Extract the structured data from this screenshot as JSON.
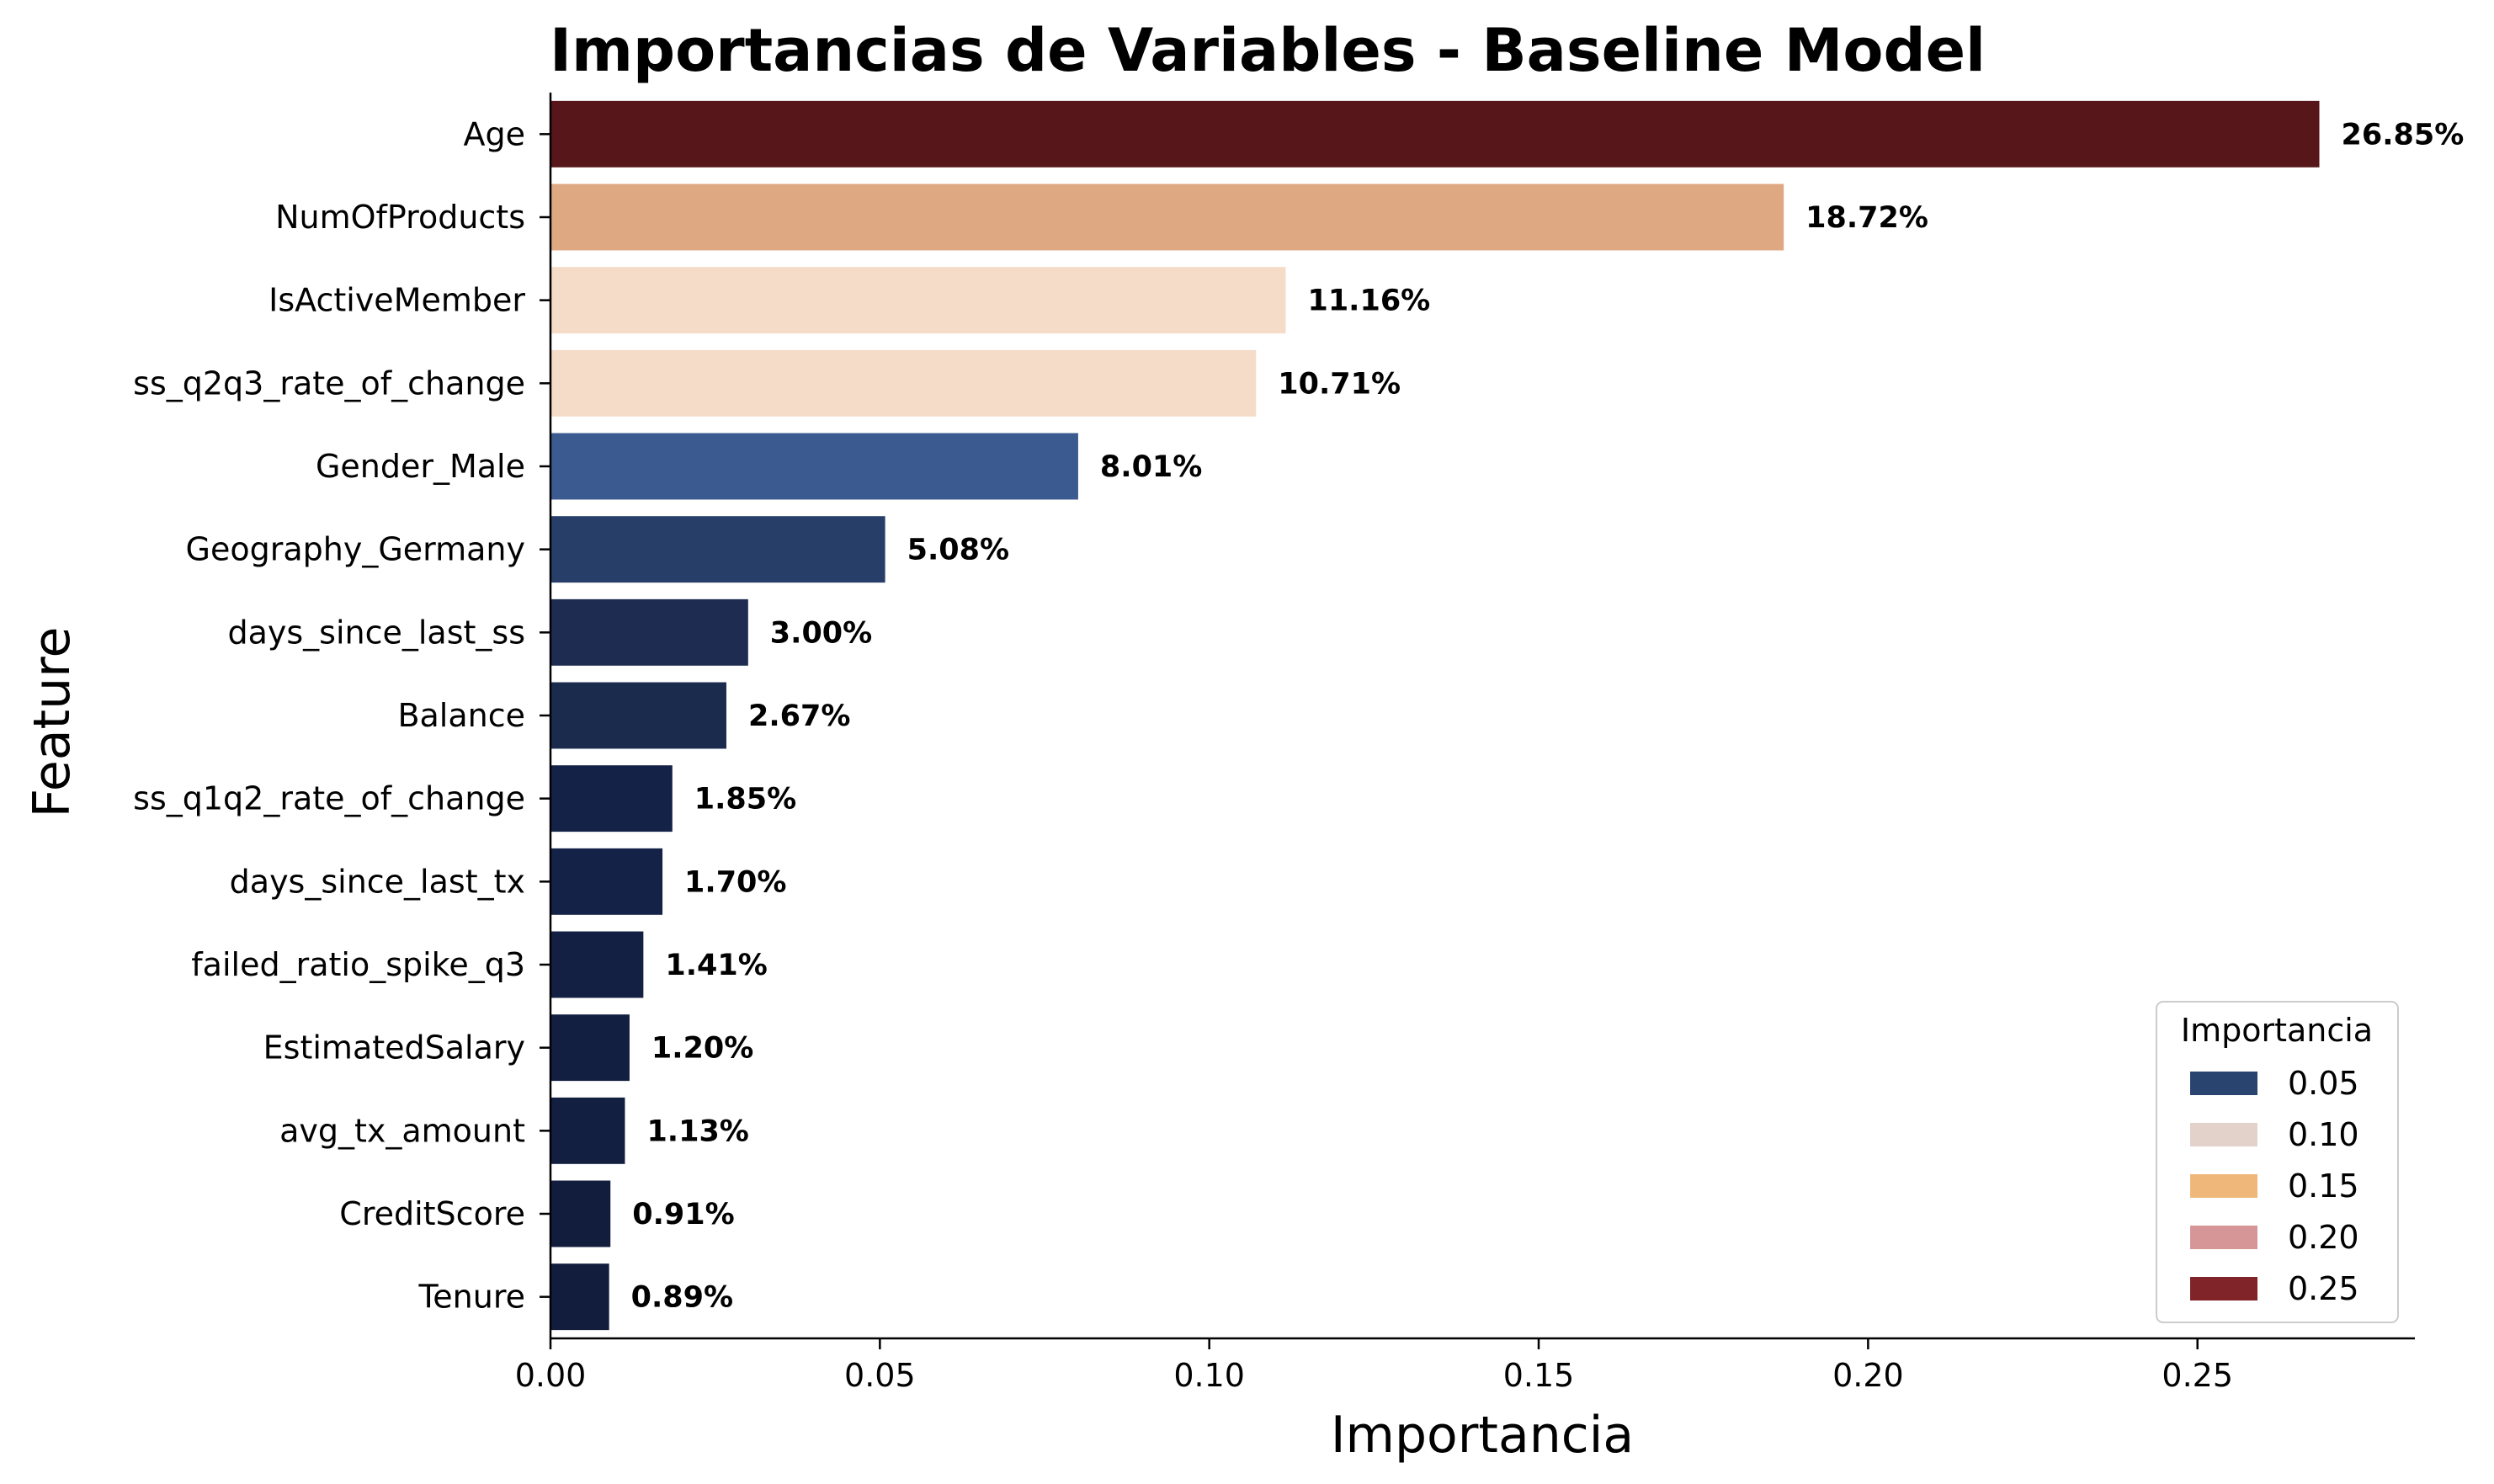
{
  "chart_data": {
    "type": "bar",
    "orientation": "horizontal",
    "title": "Importancias de Variables - Baseline Model",
    "xlabel": "Importancia",
    "ylabel": "Feature",
    "xlim": [
      0,
      0.283
    ],
    "xticks": [
      {
        "value": 0.0,
        "label": "0.00"
      },
      {
        "value": 0.05,
        "label": "0.05"
      },
      {
        "value": 0.1,
        "label": "0.10"
      },
      {
        "value": 0.15,
        "label": "0.15"
      },
      {
        "value": 0.2,
        "label": "0.20"
      },
      {
        "value": 0.25,
        "label": "0.25"
      }
    ],
    "grid": false,
    "categories": [
      "Age",
      "NumOfProducts",
      "IsActiveMember",
      "ss_q2q3_rate_of_change",
      "Gender_Male",
      "Geography_Germany",
      "days_since_last_ss",
      "Balance",
      "ss_q1q2_rate_of_change",
      "days_since_last_tx",
      "failed_ratio_spike_q3",
      "EstimatedSalary",
      "avg_tx_amount",
      "CreditScore",
      "Tenure"
    ],
    "values": [
      0.2685,
      0.1872,
      0.1116,
      0.1071,
      0.0801,
      0.0508,
      0.03,
      0.0267,
      0.0185,
      0.017,
      0.0141,
      0.012,
      0.0113,
      0.0091,
      0.0089
    ],
    "value_labels": [
      "26.85%",
      "18.72%",
      "11.16%",
      "10.71%",
      "8.01%",
      "5.08%",
      "3.00%",
      "2.67%",
      "1.85%",
      "1.70%",
      "1.41%",
      "1.20%",
      "1.13%",
      "0.91%",
      "0.89%"
    ],
    "bar_colors": [
      "#571619",
      "#dea883",
      "#f5dcc9",
      "#f5dcc9",
      "#3b5a8f",
      "#273f68",
      "#1d2c50",
      "#1b2b4e",
      "#152247",
      "#152247",
      "#142043",
      "#131f41",
      "#131f41",
      "#121d3e",
      "#121d3e"
    ],
    "legend": {
      "title": "Importancia",
      "placement": "lower-right",
      "entries": [
        {
          "label": "0.05",
          "color": "#2a4470"
        },
        {
          "label": "0.10",
          "color": "#e2d2ca"
        },
        {
          "label": "0.15",
          "color": "#efb87a"
        },
        {
          "label": "0.20",
          "color": "#d69698"
        },
        {
          "label": "0.25",
          "color": "#802429"
        }
      ]
    }
  }
}
